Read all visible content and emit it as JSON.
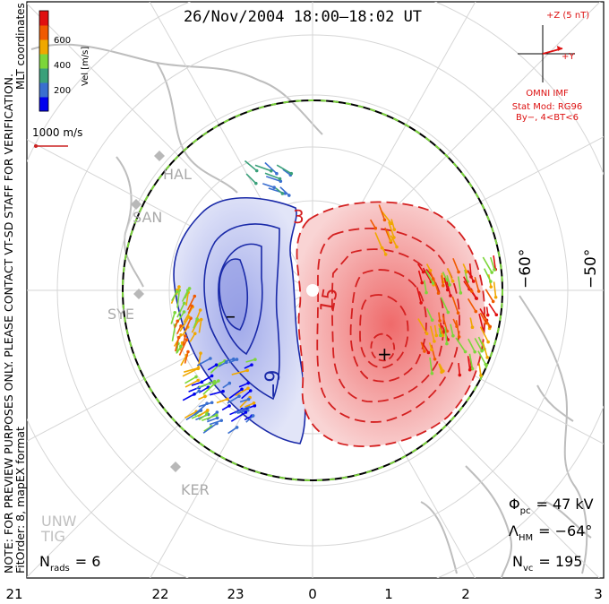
{
  "title": "26/Nov/2004 18:00–18:02 UT",
  "notes": {
    "line1": "NOTE: FOR PREVIEW PURPOSES ONLY. PLEASE CONTACT VT-SD STAFF FOR VERIFICATION.",
    "line2": "FitOrder: 8, mapEX format"
  },
  "coords_label": "MLT coordinates",
  "colorbar": {
    "label": "Vel [m/s]",
    "ticks": [
      "600",
      "400",
      "200"
    ],
    "colors": [
      "#0000ee",
      "#3a6fd0",
      "#3aa07a",
      "#7cd63a",
      "#f0a800",
      "#f05a00",
      "#e01010"
    ]
  },
  "scale_vector": {
    "label": "1000 m/s",
    "color": "#cc2222"
  },
  "imf": {
    "z_label": "+Z (5 nT)",
    "y_label": "+Y",
    "source": "OMNI IMF",
    "model": "Stat Mod: RG96",
    "condition": "By−, 4<BT<6",
    "color": "#dd1111"
  },
  "stations": [
    "HAL",
    "SAN",
    "SYE",
    "KER",
    "UNW",
    "TIG"
  ],
  "lat_labels": [
    "−60°",
    "−50°"
  ],
  "contours": {
    "negative_label": "−9",
    "positive_label": "15",
    "top_label": "3",
    "min_marker": "–",
    "max_marker": "+",
    "neg_color": "#1a2aa8",
    "pos_color": "#d42020"
  },
  "stats": {
    "phi_label": "Φ",
    "phi_sub": "pc",
    "phi_value": "= 47 kV",
    "lam_label": "Λ",
    "lam_sub": "HM",
    "lam_value": "= −64°",
    "nvc_label": "N",
    "nvc_sub": "vc",
    "nvc_value": "= 195",
    "nrads_label": "N",
    "nrads_sub": "rads",
    "nrads_value": "= 6"
  },
  "mlt_axis": [
    "21",
    "22",
    "23",
    "0",
    "1",
    "2",
    "3"
  ]
}
